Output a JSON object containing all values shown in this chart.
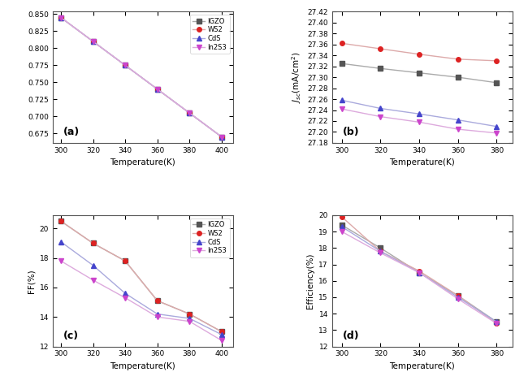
{
  "temp_a": [
    300,
    320,
    340,
    360,
    380,
    400
  ],
  "temp_b": [
    300,
    320,
    340,
    360,
    380
  ],
  "temp_c": [
    300,
    320,
    340,
    360,
    380,
    400
  ],
  "temp_d": [
    300,
    320,
    340,
    360,
    380
  ],
  "panel_a": {
    "IGZO": [
      0.845,
      0.81,
      0.775,
      0.74,
      0.705,
      0.67
    ],
    "WS2": [
      0.845,
      0.81,
      0.775,
      0.74,
      0.705,
      0.67
    ],
    "CdS": [
      0.845,
      0.81,
      0.775,
      0.74,
      0.705,
      0.67
    ],
    "In2S3": [
      0.845,
      0.81,
      0.775,
      0.74,
      0.705,
      0.67
    ],
    "label": "(a)"
  },
  "panel_b": {
    "IGZO": [
      27.325,
      27.316,
      27.308,
      27.3,
      27.29
    ],
    "WS2": [
      27.362,
      27.352,
      27.342,
      27.333,
      27.33
    ],
    "CdS": [
      27.258,
      27.243,
      27.233,
      27.222,
      27.21
    ],
    "In2S3": [
      27.242,
      27.228,
      27.218,
      27.205,
      27.198
    ],
    "ylim": [
      27.18,
      27.42
    ],
    "yticks": [
      27.18,
      27.2,
      27.22,
      27.24,
      27.26,
      27.28,
      27.3,
      27.32,
      27.34,
      27.36,
      27.38,
      27.4,
      27.42
    ],
    "label": "(b)"
  },
  "panel_c": {
    "IGZO": [
      20.5,
      19.0,
      17.8,
      15.1,
      14.2,
      13.0
    ],
    "WS2": [
      20.5,
      19.0,
      17.8,
      15.1,
      14.2,
      13.0
    ],
    "CdS": [
      19.1,
      17.5,
      15.6,
      14.2,
      13.9,
      12.8
    ],
    "In2S3": [
      17.8,
      16.5,
      15.3,
      14.0,
      13.7,
      12.4
    ],
    "label": "(c)"
  },
  "panel_d": {
    "IGZO": [
      19.4,
      18.0,
      16.5,
      15.1,
      13.5
    ],
    "WS2": [
      19.9,
      17.8,
      16.6,
      15.1,
      13.4
    ],
    "CdS": [
      19.3,
      17.8,
      16.5,
      15.0,
      13.5
    ],
    "In2S3": [
      19.0,
      17.7,
      16.5,
      14.9,
      13.4
    ],
    "ylim": [
      12,
      20
    ],
    "yticks": [
      12,
      13,
      14,
      15,
      16,
      17,
      18,
      19,
      20
    ],
    "label": "(d)"
  },
  "colors": {
    "IGZO": "#555555",
    "WS2": "#dd2222",
    "CdS": "#4444cc",
    "In2S3": "#cc44cc"
  },
  "line_colors": {
    "IGZO": "#aaaaaa",
    "WS2": "#ddaaaa",
    "CdS": "#aaaadd",
    "In2S3": "#ddaadd"
  },
  "markers": {
    "IGZO": "s",
    "WS2": "o",
    "CdS": "^",
    "In2S3": "v"
  },
  "legend_labels": [
    "IGZO",
    "WS2",
    "CdS",
    "In2S3"
  ],
  "xlabel": "Temperature(K)",
  "background": "#ffffff"
}
